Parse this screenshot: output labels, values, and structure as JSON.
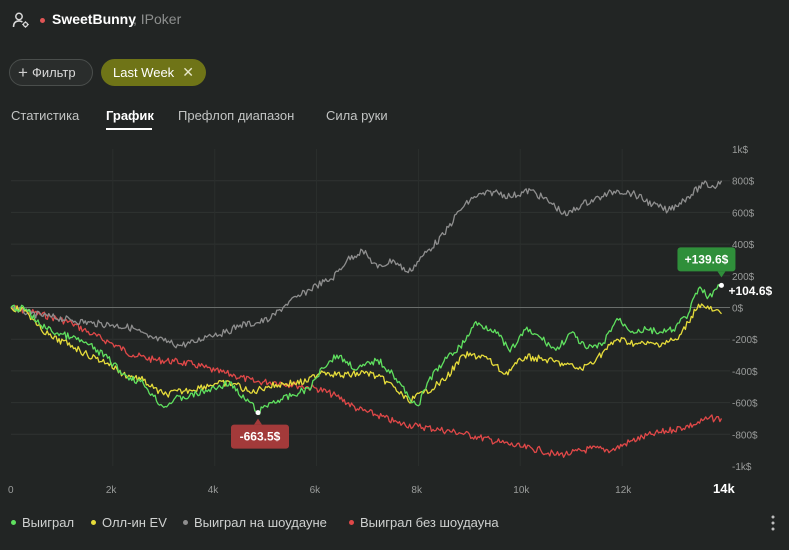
{
  "header": {
    "player_name": "SweetBunny",
    "room": ", IPoker",
    "status_color": "#e05555",
    "user_icon": "user-settings-icon"
  },
  "filters": {
    "add_filter_label": "Фильтр",
    "active_filter_label": "Last Week",
    "remove_icon": "close-icon"
  },
  "tabs": [
    {
      "label": "Статистика",
      "active": false
    },
    {
      "label": "График",
      "active": true
    },
    {
      "label": "Префлоп диапазон",
      "active": false
    },
    {
      "label": "Сила руки",
      "active": false
    }
  ],
  "chart_data": {
    "type": "line",
    "x_ticks": [
      "0",
      "2k",
      "4k",
      "6k",
      "8k",
      "10k",
      "12k",
      "14k"
    ],
    "x_highlight_tick": "14k",
    "y_ticks": [
      "1k$",
      "800$",
      "600$",
      "400$",
      "200$",
      "0$",
      "-200$",
      "-400$",
      "-600$",
      "-800$",
      "-1k$"
    ],
    "xlim": [
      0,
      14000
    ],
    "ylim": [
      -1000,
      1000
    ],
    "grid": true,
    "legend_placement": "bottom-left",
    "series": [
      {
        "name": "Выиграл",
        "color": "#5fe05f",
        "points": [
          [
            0,
            0
          ],
          [
            300,
            -10
          ],
          [
            500,
            -90
          ],
          [
            800,
            -150
          ],
          [
            1200,
            -190
          ],
          [
            1500,
            -230
          ],
          [
            1900,
            -320
          ],
          [
            2200,
            -420
          ],
          [
            2600,
            -480
          ],
          [
            2800,
            -560
          ],
          [
            3000,
            -630
          ],
          [
            3200,
            -580
          ],
          [
            3500,
            -560
          ],
          [
            4000,
            -510
          ],
          [
            4300,
            -470
          ],
          [
            4500,
            -560
          ],
          [
            4700,
            -600
          ],
          [
            4850,
            -663.5
          ],
          [
            5100,
            -600
          ],
          [
            5500,
            -560
          ],
          [
            5900,
            -500
          ],
          [
            6100,
            -380
          ],
          [
            6400,
            -300
          ],
          [
            6800,
            -390
          ],
          [
            7200,
            -330
          ],
          [
            7500,
            -420
          ],
          [
            7800,
            -560
          ],
          [
            8000,
            -620
          ],
          [
            8200,
            -460
          ],
          [
            8500,
            -340
          ],
          [
            8900,
            -220
          ],
          [
            9100,
            -100
          ],
          [
            9500,
            -140
          ],
          [
            9800,
            -280
          ],
          [
            10100,
            -140
          ],
          [
            10400,
            -190
          ],
          [
            10700,
            -270
          ],
          [
            11000,
            -160
          ],
          [
            11300,
            -260
          ],
          [
            11600,
            -240
          ],
          [
            11900,
            -70
          ],
          [
            12200,
            -150
          ],
          [
            12500,
            -140
          ],
          [
            12800,
            -160
          ],
          [
            13000,
            -140
          ],
          [
            13300,
            -40
          ],
          [
            13500,
            120
          ],
          [
            13700,
            70
          ],
          [
            13950,
            139.6
          ]
        ]
      },
      {
        "name": "Олл-ин EV",
        "color": "#e6dc3a",
        "points": [
          [
            0,
            0
          ],
          [
            300,
            -20
          ],
          [
            500,
            -110
          ],
          [
            800,
            -190
          ],
          [
            1200,
            -240
          ],
          [
            1500,
            -300
          ],
          [
            1900,
            -350
          ],
          [
            2200,
            -420
          ],
          [
            2600,
            -460
          ],
          [
            2800,
            -510
          ],
          [
            3000,
            -550
          ],
          [
            3500,
            -520
          ],
          [
            4000,
            -480
          ],
          [
            4400,
            -480
          ],
          [
            4700,
            -540
          ],
          [
            5000,
            -500
          ],
          [
            5400,
            -480
          ],
          [
            5800,
            -470
          ],
          [
            6100,
            -400
          ],
          [
            6500,
            -430
          ],
          [
            7000,
            -410
          ],
          [
            7400,
            -470
          ],
          [
            7800,
            -590
          ],
          [
            8100,
            -540
          ],
          [
            8500,
            -460
          ],
          [
            8900,
            -300
          ],
          [
            9300,
            -310
          ],
          [
            9700,
            -420
          ],
          [
            10100,
            -310
          ],
          [
            10500,
            -330
          ],
          [
            10900,
            -360
          ],
          [
            11200,
            -390
          ],
          [
            11500,
            -320
          ],
          [
            11900,
            -200
          ],
          [
            12300,
            -230
          ],
          [
            12700,
            -230
          ],
          [
            13100,
            -200
          ],
          [
            13500,
            20
          ],
          [
            13800,
            -20
          ],
          [
            13950,
            -40
          ]
        ]
      },
      {
        "name": "Выиграл на шоудауне",
        "color": "#8e8e8e",
        "points": [
          [
            0,
            0
          ],
          [
            400,
            -40
          ],
          [
            800,
            -60
          ],
          [
            1200,
            -80
          ],
          [
            1600,
            -100
          ],
          [
            2000,
            -110
          ],
          [
            2400,
            -130
          ],
          [
            2700,
            -190
          ],
          [
            3000,
            -210
          ],
          [
            3300,
            -240
          ],
          [
            3600,
            -220
          ],
          [
            3900,
            -170
          ],
          [
            4200,
            -160
          ],
          [
            4500,
            -110
          ],
          [
            4800,
            -100
          ],
          [
            5100,
            -70
          ],
          [
            5400,
            20
          ],
          [
            5700,
            80
          ],
          [
            6000,
            140
          ],
          [
            6300,
            180
          ],
          [
            6600,
            300
          ],
          [
            6900,
            360
          ],
          [
            7200,
            250
          ],
          [
            7500,
            300
          ],
          [
            7800,
            220
          ],
          [
            8100,
            330
          ],
          [
            8500,
            460
          ],
          [
            8800,
            610
          ],
          [
            9100,
            700
          ],
          [
            9500,
            730
          ],
          [
            9800,
            700
          ],
          [
            10200,
            740
          ],
          [
            10600,
            660
          ],
          [
            10900,
            580
          ],
          [
            11200,
            650
          ],
          [
            11600,
            700
          ],
          [
            11900,
            740
          ],
          [
            12200,
            720
          ],
          [
            12600,
            650
          ],
          [
            12900,
            610
          ],
          [
            13300,
            700
          ],
          [
            13600,
            780
          ],
          [
            13800,
            760
          ],
          [
            13950,
            800
          ]
        ]
      },
      {
        "name": "Выиграл без шоудауна",
        "color": "#e04848",
        "points": [
          [
            0,
            0
          ],
          [
            400,
            -30
          ],
          [
            800,
            -60
          ],
          [
            1200,
            -100
          ],
          [
            1600,
            -170
          ],
          [
            2000,
            -230
          ],
          [
            2400,
            -300
          ],
          [
            2800,
            -330
          ],
          [
            3200,
            -340
          ],
          [
            3600,
            -360
          ],
          [
            4000,
            -400
          ],
          [
            4400,
            -430
          ],
          [
            4800,
            -470
          ],
          [
            5200,
            -470
          ],
          [
            5600,
            -490
          ],
          [
            6000,
            -510
          ],
          [
            6400,
            -560
          ],
          [
            6800,
            -640
          ],
          [
            7200,
            -680
          ],
          [
            7600,
            -730
          ],
          [
            8000,
            -750
          ],
          [
            8400,
            -770
          ],
          [
            8800,
            -790
          ],
          [
            9200,
            -820
          ],
          [
            9600,
            -850
          ],
          [
            10000,
            -880
          ],
          [
            10400,
            -900
          ],
          [
            10700,
            -930
          ],
          [
            11000,
            -920
          ],
          [
            11400,
            -890
          ],
          [
            11800,
            -900
          ],
          [
            12200,
            -840
          ],
          [
            12600,
            -800
          ],
          [
            13000,
            -770
          ],
          [
            13400,
            -740
          ],
          [
            13700,
            -700
          ],
          [
            13950,
            -700
          ]
        ]
      }
    ],
    "annotations": [
      {
        "text": "+139.6$",
        "x": 13950,
        "y": 139.6,
        "bg": "#2f8f3a"
      },
      {
        "text": "-663.5$",
        "x": 4850,
        "y": -663.5,
        "bg": "#a33a3a"
      },
      {
        "text": "+104.6$",
        "x": 13950,
        "y": 104.6,
        "bg": ""
      }
    ]
  },
  "more_icon": "more-vertical-icon"
}
